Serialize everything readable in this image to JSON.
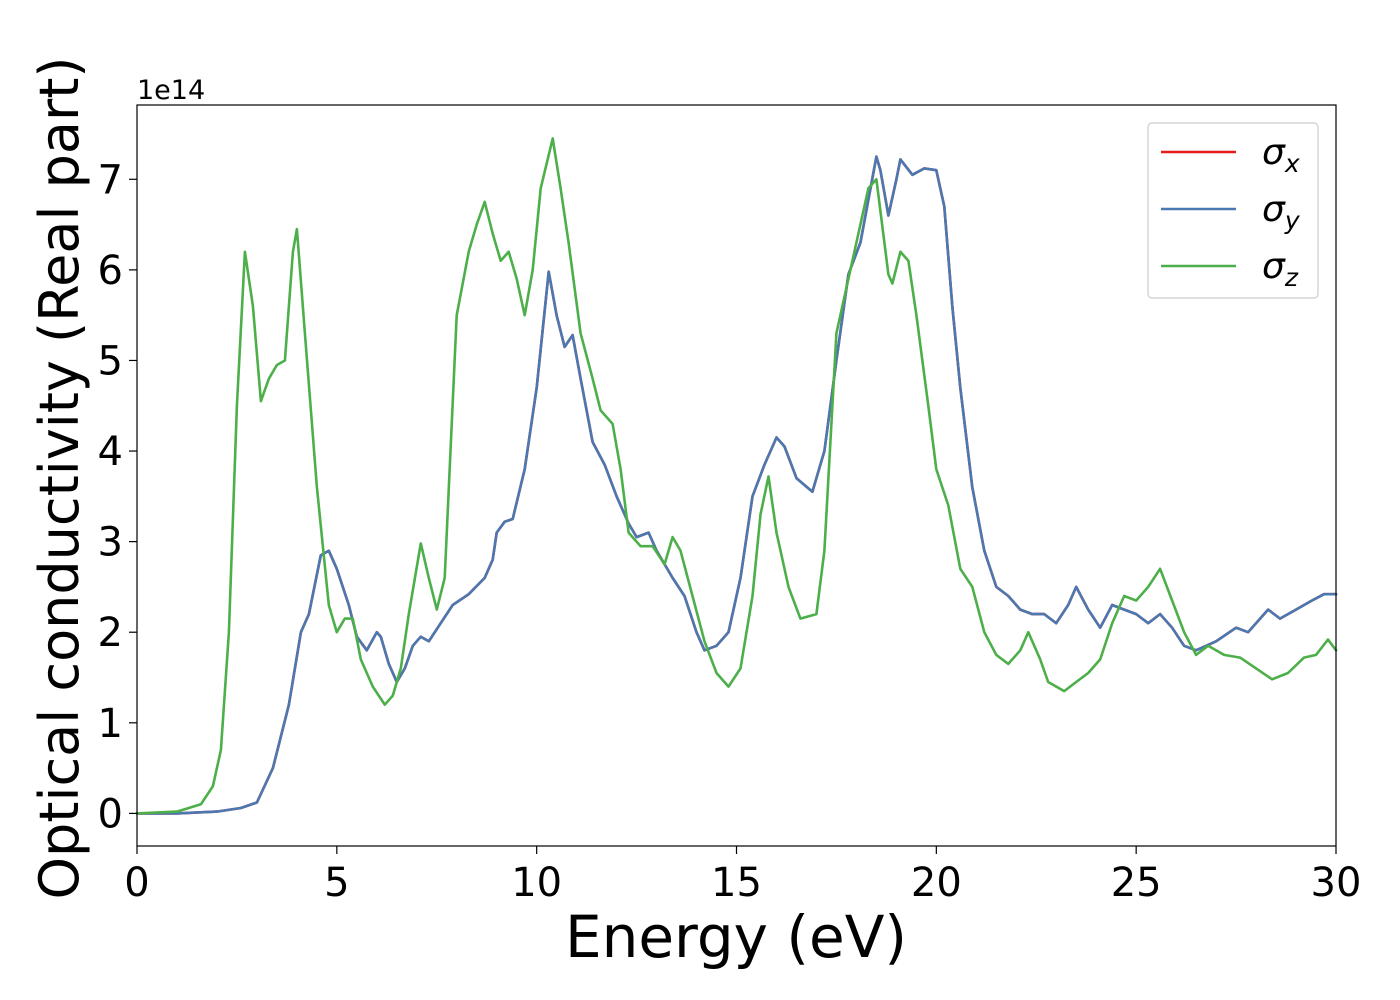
{
  "chart_data": {
    "type": "line",
    "title": "",
    "xlabel": "Energy (eV)",
    "ylabel": "Optical conductivity (Real part)",
    "offset_text": "1e14",
    "xlim": [
      0,
      30
    ],
    "ylim": [
      -0.36,
      7.82
    ],
    "xticks": [
      0,
      5,
      10,
      15,
      20,
      25,
      30
    ],
    "xtick_labels": [
      "0",
      "5",
      "10",
      "15",
      "20",
      "25",
      "30"
    ],
    "yticks": [
      0,
      1,
      2,
      3,
      4,
      5,
      6,
      7
    ],
    "ytick_labels": [
      "0",
      "1",
      "2",
      "3",
      "4",
      "5",
      "6",
      "7"
    ],
    "grid": false,
    "legend_position": "top-right",
    "series": [
      {
        "name": "σx",
        "legend_symbol": "σ",
        "legend_subscript": "x",
        "color": "#e41a1c",
        "points": [
          [
            0,
            0
          ],
          [
            1,
            0
          ],
          [
            2,
            0.02
          ],
          [
            2.6,
            0.06
          ],
          [
            3.0,
            0.12
          ],
          [
            3.4,
            0.5
          ],
          [
            3.8,
            1.2
          ],
          [
            4.1,
            2.0
          ],
          [
            4.3,
            2.2
          ],
          [
            4.6,
            2.85
          ],
          [
            4.8,
            2.9
          ],
          [
            5.0,
            2.7
          ],
          [
            5.3,
            2.3
          ],
          [
            5.5,
            1.95
          ],
          [
            5.75,
            1.8
          ],
          [
            6.0,
            2.0
          ],
          [
            6.1,
            1.95
          ],
          [
            6.3,
            1.65
          ],
          [
            6.5,
            1.45
          ],
          [
            6.7,
            1.6
          ],
          [
            6.9,
            1.85
          ],
          [
            7.1,
            1.95
          ],
          [
            7.3,
            1.9
          ],
          [
            7.6,
            2.1
          ],
          [
            7.9,
            2.3
          ],
          [
            8.3,
            2.42
          ],
          [
            8.7,
            2.6
          ],
          [
            8.9,
            2.8
          ],
          [
            9.0,
            3.1
          ],
          [
            9.2,
            3.22
          ],
          [
            9.4,
            3.25
          ],
          [
            9.7,
            3.8
          ],
          [
            10.0,
            4.7
          ],
          [
            10.3,
            5.98
          ],
          [
            10.5,
            5.5
          ],
          [
            10.7,
            5.15
          ],
          [
            10.9,
            5.28
          ],
          [
            11.1,
            4.8
          ],
          [
            11.4,
            4.1
          ],
          [
            11.7,
            3.85
          ],
          [
            12.0,
            3.5
          ],
          [
            12.3,
            3.2
          ],
          [
            12.5,
            3.05
          ],
          [
            12.8,
            3.1
          ],
          [
            13.0,
            2.9
          ],
          [
            13.4,
            2.6
          ],
          [
            13.7,
            2.4
          ],
          [
            14.0,
            2.0
          ],
          [
            14.2,
            1.8
          ],
          [
            14.5,
            1.85
          ],
          [
            14.8,
            2.0
          ],
          [
            15.1,
            2.6
          ],
          [
            15.4,
            3.5
          ],
          [
            15.7,
            3.85
          ],
          [
            16.0,
            4.15
          ],
          [
            16.2,
            4.05
          ],
          [
            16.5,
            3.7
          ],
          [
            16.9,
            3.55
          ],
          [
            17.2,
            4.0
          ],
          [
            17.5,
            5.0
          ],
          [
            17.8,
            5.95
          ],
          [
            18.1,
            6.3
          ],
          [
            18.5,
            7.25
          ],
          [
            18.6,
            7.1
          ],
          [
            18.8,
            6.6
          ],
          [
            19.0,
            7.0
          ],
          [
            19.1,
            7.22
          ],
          [
            19.4,
            7.05
          ],
          [
            19.7,
            7.12
          ],
          [
            20.0,
            7.1
          ],
          [
            20.2,
            6.7
          ],
          [
            20.4,
            5.6
          ],
          [
            20.6,
            4.7
          ],
          [
            20.9,
            3.6
          ],
          [
            21.2,
            2.9
          ],
          [
            21.5,
            2.5
          ],
          [
            21.8,
            2.4
          ],
          [
            22.1,
            2.25
          ],
          [
            22.4,
            2.2
          ],
          [
            22.7,
            2.2
          ],
          [
            23.0,
            2.1
          ],
          [
            23.3,
            2.3
          ],
          [
            23.5,
            2.5
          ],
          [
            23.8,
            2.25
          ],
          [
            24.1,
            2.05
          ],
          [
            24.4,
            2.3
          ],
          [
            24.7,
            2.25
          ],
          [
            25.0,
            2.2
          ],
          [
            25.3,
            2.1
          ],
          [
            25.6,
            2.2
          ],
          [
            25.9,
            2.05
          ],
          [
            26.2,
            1.85
          ],
          [
            26.5,
            1.8
          ],
          [
            27.0,
            1.9
          ],
          [
            27.5,
            2.05
          ],
          [
            27.8,
            2.0
          ],
          [
            28.3,
            2.25
          ],
          [
            28.6,
            2.15
          ],
          [
            29.0,
            2.25
          ],
          [
            29.4,
            2.35
          ],
          [
            29.7,
            2.42
          ],
          [
            30.0,
            2.42
          ]
        ]
      },
      {
        "name": "σy",
        "legend_symbol": "σ",
        "legend_subscript": "y",
        "color": "#4a78b0",
        "points": [
          [
            0,
            0
          ],
          [
            1,
            0
          ],
          [
            2,
            0.02
          ],
          [
            2.6,
            0.06
          ],
          [
            3.0,
            0.12
          ],
          [
            3.4,
            0.5
          ],
          [
            3.8,
            1.2
          ],
          [
            4.1,
            2.0
          ],
          [
            4.3,
            2.2
          ],
          [
            4.6,
            2.85
          ],
          [
            4.8,
            2.9
          ],
          [
            5.0,
            2.7
          ],
          [
            5.3,
            2.3
          ],
          [
            5.5,
            1.95
          ],
          [
            5.75,
            1.8
          ],
          [
            6.0,
            2.0
          ],
          [
            6.1,
            1.95
          ],
          [
            6.3,
            1.65
          ],
          [
            6.5,
            1.45
          ],
          [
            6.7,
            1.6
          ],
          [
            6.9,
            1.85
          ],
          [
            7.1,
            1.95
          ],
          [
            7.3,
            1.9
          ],
          [
            7.6,
            2.1
          ],
          [
            7.9,
            2.3
          ],
          [
            8.3,
            2.42
          ],
          [
            8.7,
            2.6
          ],
          [
            8.9,
            2.8
          ],
          [
            9.0,
            3.1
          ],
          [
            9.2,
            3.22
          ],
          [
            9.4,
            3.25
          ],
          [
            9.7,
            3.8
          ],
          [
            10.0,
            4.7
          ],
          [
            10.3,
            5.98
          ],
          [
            10.5,
            5.5
          ],
          [
            10.7,
            5.15
          ],
          [
            10.9,
            5.28
          ],
          [
            11.1,
            4.8
          ],
          [
            11.4,
            4.1
          ],
          [
            11.7,
            3.85
          ],
          [
            12.0,
            3.5
          ],
          [
            12.3,
            3.2
          ],
          [
            12.5,
            3.05
          ],
          [
            12.8,
            3.1
          ],
          [
            13.0,
            2.9
          ],
          [
            13.4,
            2.6
          ],
          [
            13.7,
            2.4
          ],
          [
            14.0,
            2.0
          ],
          [
            14.2,
            1.8
          ],
          [
            14.5,
            1.85
          ],
          [
            14.8,
            2.0
          ],
          [
            15.1,
            2.6
          ],
          [
            15.4,
            3.5
          ],
          [
            15.7,
            3.85
          ],
          [
            16.0,
            4.15
          ],
          [
            16.2,
            4.05
          ],
          [
            16.5,
            3.7
          ],
          [
            16.9,
            3.55
          ],
          [
            17.2,
            4.0
          ],
          [
            17.5,
            5.0
          ],
          [
            17.8,
            5.95
          ],
          [
            18.1,
            6.3
          ],
          [
            18.5,
            7.25
          ],
          [
            18.6,
            7.1
          ],
          [
            18.8,
            6.6
          ],
          [
            19.0,
            7.0
          ],
          [
            19.1,
            7.22
          ],
          [
            19.4,
            7.05
          ],
          [
            19.7,
            7.12
          ],
          [
            20.0,
            7.1
          ],
          [
            20.2,
            6.7
          ],
          [
            20.4,
            5.6
          ],
          [
            20.6,
            4.7
          ],
          [
            20.9,
            3.6
          ],
          [
            21.2,
            2.9
          ],
          [
            21.5,
            2.5
          ],
          [
            21.8,
            2.4
          ],
          [
            22.1,
            2.25
          ],
          [
            22.4,
            2.2
          ],
          [
            22.7,
            2.2
          ],
          [
            23.0,
            2.1
          ],
          [
            23.3,
            2.3
          ],
          [
            23.5,
            2.5
          ],
          [
            23.8,
            2.25
          ],
          [
            24.1,
            2.05
          ],
          [
            24.4,
            2.3
          ],
          [
            24.7,
            2.25
          ],
          [
            25.0,
            2.2
          ],
          [
            25.3,
            2.1
          ],
          [
            25.6,
            2.2
          ],
          [
            25.9,
            2.05
          ],
          [
            26.2,
            1.85
          ],
          [
            26.5,
            1.8
          ],
          [
            27.0,
            1.9
          ],
          [
            27.5,
            2.05
          ],
          [
            27.8,
            2.0
          ],
          [
            28.3,
            2.25
          ],
          [
            28.6,
            2.15
          ],
          [
            29.0,
            2.25
          ],
          [
            29.4,
            2.35
          ],
          [
            29.7,
            2.42
          ],
          [
            30.0,
            2.42
          ]
        ]
      },
      {
        "name": "σz",
        "legend_symbol": "σ",
        "legend_subscript": "z",
        "color": "#4daf4a",
        "points": [
          [
            0,
            0
          ],
          [
            1,
            0.02
          ],
          [
            1.6,
            0.1
          ],
          [
            1.9,
            0.3
          ],
          [
            2.1,
            0.7
          ],
          [
            2.3,
            2.0
          ],
          [
            2.5,
            4.5
          ],
          [
            2.7,
            6.2
          ],
          [
            2.9,
            5.6
          ],
          [
            3.1,
            4.55
          ],
          [
            3.3,
            4.8
          ],
          [
            3.5,
            4.95
          ],
          [
            3.7,
            5.0
          ],
          [
            3.9,
            6.2
          ],
          [
            4.0,
            6.45
          ],
          [
            4.2,
            5.3
          ],
          [
            4.5,
            3.6
          ],
          [
            4.8,
            2.3
          ],
          [
            5.0,
            2.0
          ],
          [
            5.2,
            2.15
          ],
          [
            5.4,
            2.15
          ],
          [
            5.6,
            1.7
          ],
          [
            5.9,
            1.4
          ],
          [
            6.2,
            1.2
          ],
          [
            6.4,
            1.3
          ],
          [
            6.6,
            1.6
          ],
          [
            6.8,
            2.2
          ],
          [
            7.1,
            2.98
          ],
          [
            7.3,
            2.6
          ],
          [
            7.5,
            2.25
          ],
          [
            7.7,
            2.6
          ],
          [
            8.0,
            5.5
          ],
          [
            8.3,
            6.2
          ],
          [
            8.5,
            6.5
          ],
          [
            8.7,
            6.75
          ],
          [
            8.9,
            6.4
          ],
          [
            9.1,
            6.1
          ],
          [
            9.3,
            6.2
          ],
          [
            9.5,
            5.9
          ],
          [
            9.7,
            5.5
          ],
          [
            9.9,
            6.0
          ],
          [
            10.1,
            6.9
          ],
          [
            10.4,
            7.45
          ],
          [
            10.6,
            6.9
          ],
          [
            10.8,
            6.3
          ],
          [
            11.1,
            5.3
          ],
          [
            11.4,
            4.8
          ],
          [
            11.6,
            4.45
          ],
          [
            11.9,
            4.3
          ],
          [
            12.1,
            3.8
          ],
          [
            12.3,
            3.1
          ],
          [
            12.6,
            2.95
          ],
          [
            12.9,
            2.95
          ],
          [
            13.2,
            2.75
          ],
          [
            13.4,
            3.05
          ],
          [
            13.6,
            2.9
          ],
          [
            13.9,
            2.4
          ],
          [
            14.2,
            1.9
          ],
          [
            14.5,
            1.55
          ],
          [
            14.8,
            1.4
          ],
          [
            15.1,
            1.6
          ],
          [
            15.4,
            2.4
          ],
          [
            15.6,
            3.3
          ],
          [
            15.8,
            3.72
          ],
          [
            16.0,
            3.1
          ],
          [
            16.3,
            2.5
          ],
          [
            16.6,
            2.15
          ],
          [
            17.0,
            2.2
          ],
          [
            17.2,
            2.9
          ],
          [
            17.5,
            5.3
          ],
          [
            17.9,
            6.1
          ],
          [
            18.3,
            6.9
          ],
          [
            18.5,
            7.0
          ],
          [
            18.8,
            5.95
          ],
          [
            18.9,
            5.85
          ],
          [
            19.1,
            6.2
          ],
          [
            19.3,
            6.1
          ],
          [
            19.5,
            5.5
          ],
          [
            19.8,
            4.5
          ],
          [
            20.0,
            3.8
          ],
          [
            20.3,
            3.4
          ],
          [
            20.6,
            2.7
          ],
          [
            20.9,
            2.5
          ],
          [
            21.2,
            2.0
          ],
          [
            21.5,
            1.75
          ],
          [
            21.8,
            1.65
          ],
          [
            22.1,
            1.8
          ],
          [
            22.3,
            2.0
          ],
          [
            22.6,
            1.7
          ],
          [
            22.8,
            1.45
          ],
          [
            23.2,
            1.35
          ],
          [
            23.5,
            1.45
          ],
          [
            23.8,
            1.55
          ],
          [
            24.1,
            1.7
          ],
          [
            24.4,
            2.1
          ],
          [
            24.7,
            2.4
          ],
          [
            25.0,
            2.35
          ],
          [
            25.3,
            2.5
          ],
          [
            25.6,
            2.7
          ],
          [
            25.9,
            2.35
          ],
          [
            26.2,
            2.0
          ],
          [
            26.5,
            1.75
          ],
          [
            26.8,
            1.85
          ],
          [
            27.2,
            1.75
          ],
          [
            27.6,
            1.72
          ],
          [
            28.0,
            1.6
          ],
          [
            28.4,
            1.48
          ],
          [
            28.8,
            1.55
          ],
          [
            29.2,
            1.72
          ],
          [
            29.5,
            1.75
          ],
          [
            29.8,
            1.92
          ],
          [
            30.0,
            1.8
          ]
        ]
      }
    ]
  }
}
